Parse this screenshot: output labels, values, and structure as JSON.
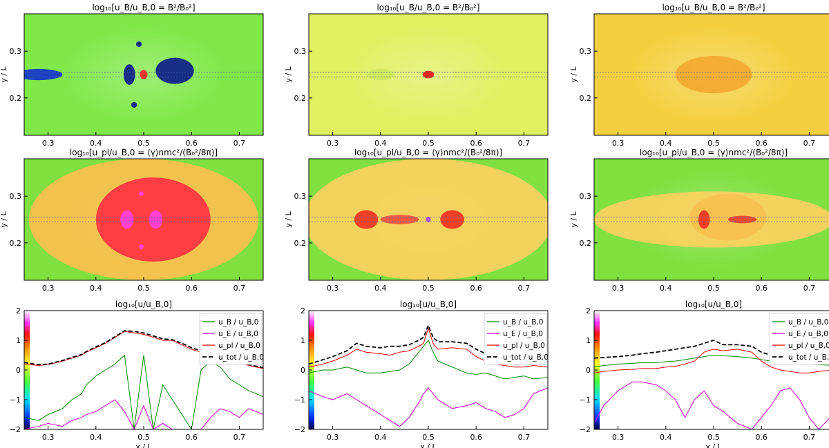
{
  "figure": {
    "title_uB": "log₁₀[u_B/u_B,0 = B²/B₀²]",
    "title_upl": "log₁₀[u_pl/u_B,0 = ⟨γ⟩nmc²/(B₀²/8π)]",
    "title_u": "log₁₀[u/u_B,0]",
    "ylabel_map": "y / L",
    "xlabel_line": "x / L",
    "x_ticks": [
      "0.3",
      "0.4",
      "0.5",
      "0.6",
      "0.7"
    ],
    "y_ticks_map": [
      "0.3",
      "0.2"
    ],
    "y_ticks_line": [
      "2",
      "1",
      "0",
      "−1",
      "−2"
    ],
    "legend": [
      "u_B / u_B,0",
      "u_E / u_B,0",
      "u_pl / u_B,0",
      "u_tot / u_B,0"
    ]
  },
  "chart_data": [
    {
      "type": "heatmap",
      "title": "log₁₀[u_B/u_B,0 = B²/B₀²]",
      "xlabel": "",
      "ylabel": "y / L",
      "xlim": [
        0.25,
        0.75
      ],
      "ylim": [
        0.12,
        0.38
      ],
      "features": [
        {
          "x": 0.28,
          "y": 0.25,
          "rx": 0.05,
          "ry": 0.012,
          "color": "#1030d0"
        },
        {
          "x": 0.47,
          "y": 0.25,
          "rx": 0.012,
          "ry": 0.022,
          "color": "#0a1a8a"
        },
        {
          "x": 0.5,
          "y": 0.25,
          "rx": 0.008,
          "ry": 0.01,
          "color": "#ff2020"
        },
        {
          "x": 0.565,
          "y": 0.258,
          "rx": 0.04,
          "ry": 0.028,
          "color": "#0a1a8a"
        },
        {
          "x": 0.49,
          "y": 0.315,
          "rx": 0.006,
          "ry": 0.006,
          "color": "#0a1a8a"
        },
        {
          "x": 0.48,
          "y": 0.185,
          "rx": 0.006,
          "ry": 0.006,
          "color": "#0a1a8a"
        }
      ]
    },
    {
      "type": "heatmap",
      "title": "log₁₀[u_B/u_B,0 = B²/B₀²]",
      "xlabel": "",
      "ylabel": "y / L",
      "xlim": [
        0.25,
        0.75
      ],
      "ylim": [
        0.12,
        0.38
      ],
      "features": [
        {
          "x": 0.5,
          "y": 0.25,
          "rx": 0.012,
          "ry": 0.008,
          "color": "#e81010"
        },
        {
          "x": 0.4,
          "y": 0.25,
          "rx": 0.03,
          "ry": 0.012,
          "color": "#d0e860"
        },
        {
          "x": 0.58,
          "y": 0.25,
          "rx": 0.03,
          "ry": 0.012,
          "color": "#e0f070"
        }
      ]
    },
    {
      "type": "heatmap",
      "title": "log₁₀[u_B/u_B,0 = B²/B₀²]",
      "xlabel": "",
      "ylabel": "y / L",
      "xlim": [
        0.25,
        0.75
      ],
      "ylim": [
        0.12,
        0.38
      ],
      "features": [
        {
          "x": 0.5,
          "y": 0.25,
          "rx": 0.08,
          "ry": 0.04,
          "color": "#f4a830"
        }
      ]
    },
    {
      "type": "heatmap",
      "title": "log₁₀[u_pl/u_B,0 = ⟨γ⟩nmc²/(B₀²/8π)]",
      "xlabel": "",
      "ylabel": "y / L",
      "xlim": [
        0.25,
        0.75
      ],
      "ylim": [
        0.12,
        0.38
      ],
      "features": [
        {
          "x": 0.5,
          "y": 0.25,
          "rx": 0.24,
          "ry": 0.13,
          "color": "#ffc050"
        },
        {
          "x": 0.52,
          "y": 0.25,
          "rx": 0.12,
          "ry": 0.09,
          "color": "#ff3040"
        },
        {
          "x": 0.465,
          "y": 0.25,
          "rx": 0.014,
          "ry": 0.02,
          "color": "#ff40e0"
        },
        {
          "x": 0.525,
          "y": 0.25,
          "rx": 0.014,
          "ry": 0.02,
          "color": "#ff40e0"
        },
        {
          "x": 0.495,
          "y": 0.305,
          "rx": 0.005,
          "ry": 0.005,
          "color": "#ff40e0"
        },
        {
          "x": 0.495,
          "y": 0.192,
          "rx": 0.005,
          "ry": 0.005,
          "color": "#ff40e0"
        }
      ]
    },
    {
      "type": "heatmap",
      "title": "log₁₀[u_pl/u_B,0 = ⟨γ⟩nmc²/(B₀²/8π)]",
      "xlabel": "",
      "ylabel": "y / L",
      "xlim": [
        0.25,
        0.75
      ],
      "ylim": [
        0.12,
        0.38
      ],
      "features": [
        {
          "x": 0.5,
          "y": 0.25,
          "rx": 0.26,
          "ry": 0.13,
          "color": "#ffd060"
        },
        {
          "x": 0.37,
          "y": 0.25,
          "rx": 0.025,
          "ry": 0.02,
          "color": "#f03020"
        },
        {
          "x": 0.44,
          "y": 0.25,
          "rx": 0.04,
          "ry": 0.01,
          "color": "#f05040"
        },
        {
          "x": 0.55,
          "y": 0.25,
          "rx": 0.025,
          "ry": 0.02,
          "color": "#f03020"
        },
        {
          "x": 0.5,
          "y": 0.25,
          "rx": 0.005,
          "ry": 0.006,
          "color": "#a040ff"
        }
      ]
    },
    {
      "type": "heatmap",
      "title": "log₁₀[u_pl/u_B,0 = ⟨γ⟩nmc²/(B₀²/8π)]",
      "xlabel": "",
      "ylabel": "y / L",
      "xlim": [
        0.25,
        0.75
      ],
      "ylim": [
        0.12,
        0.38
      ],
      "features": [
        {
          "x": 0.5,
          "y": 0.25,
          "rx": 0.25,
          "ry": 0.06,
          "color": "#ffd060"
        },
        {
          "x": 0.53,
          "y": 0.255,
          "rx": 0.08,
          "ry": 0.05,
          "color": "#f8c050"
        },
        {
          "x": 0.48,
          "y": 0.25,
          "rx": 0.012,
          "ry": 0.02,
          "color": "#f03020"
        },
        {
          "x": 0.56,
          "y": 0.25,
          "rx": 0.03,
          "ry": 0.008,
          "color": "#e84030"
        }
      ]
    },
    {
      "type": "line",
      "title": "log₁₀[u/u_B,0]",
      "xlabel": "x / L",
      "ylabel": "",
      "xlim": [
        0.25,
        0.75
      ],
      "ylim": [
        -2,
        2
      ],
      "legend_loc": "top-right",
      "x": [
        0.25,
        0.28,
        0.3,
        0.33,
        0.35,
        0.37,
        0.38,
        0.4,
        0.42,
        0.44,
        0.46,
        0.48,
        0.5,
        0.52,
        0.54,
        0.56,
        0.58,
        0.6,
        0.62,
        0.64,
        0.66,
        0.68,
        0.7,
        0.72,
        0.75
      ],
      "series": [
        {
          "name": "u_B / u_B,0",
          "color": "#008800",
          "values": [
            -1.6,
            -1.7,
            -1.5,
            -1.3,
            -1.0,
            -0.8,
            -0.5,
            -0.2,
            0.0,
            0.2,
            0.5,
            -2.0,
            0.5,
            -2.0,
            -0.5,
            -1.0,
            -1.5,
            -2.0,
            0.0,
            0.3,
            0.1,
            -0.3,
            -0.5,
            -0.7,
            -0.9
          ]
        },
        {
          "name": "u_E / u_B,0",
          "color": "#cc00cc",
          "values": [
            -2.0,
            -1.9,
            -1.8,
            -1.9,
            -1.7,
            -1.6,
            -1.5,
            -1.4,
            -1.2,
            -1.0,
            -1.4,
            -2.0,
            -1.2,
            -2.0,
            -1.8,
            -2.0,
            -2.0,
            -2.0,
            -2.0,
            -1.6,
            -1.3,
            -1.4,
            -1.6,
            -1.3,
            -1.5
          ]
        },
        {
          "name": "u_pl / u_B,0",
          "color": "#ee0000",
          "values": [
            0.2,
            0.15,
            0.18,
            0.3,
            0.4,
            0.5,
            0.6,
            0.75,
            0.9,
            1.1,
            1.3,
            1.25,
            1.2,
            1.1,
            1.0,
            1.0,
            0.85,
            0.7,
            0.6,
            0.5,
            0.4,
            0.3,
            0.25,
            0.15,
            0.05
          ]
        },
        {
          "name": "u_tot / u_B,0",
          "color": "#000000",
          "values": [
            0.25,
            0.18,
            0.2,
            0.32,
            0.42,
            0.52,
            0.62,
            0.78,
            0.92,
            1.12,
            1.32,
            1.3,
            1.25,
            1.15,
            1.05,
            1.02,
            0.9,
            0.75,
            0.65,
            0.55,
            0.45,
            0.35,
            0.28,
            0.18,
            0.08
          ]
        }
      ]
    },
    {
      "type": "line",
      "title": "log₁₀[u/u_B,0]",
      "xlabel": "x / L",
      "ylabel": "",
      "xlim": [
        0.25,
        0.75
      ],
      "ylim": [
        -2,
        2
      ],
      "legend_loc": "top-right",
      "x": [
        0.25,
        0.28,
        0.3,
        0.33,
        0.35,
        0.37,
        0.4,
        0.42,
        0.44,
        0.46,
        0.48,
        0.49,
        0.5,
        0.51,
        0.52,
        0.55,
        0.58,
        0.6,
        0.62,
        0.64,
        0.66,
        0.68,
        0.7,
        0.72,
        0.75
      ],
      "series": [
        {
          "name": "u_B / u_B,0",
          "color": "#008800",
          "values": [
            -0.1,
            0.0,
            0.0,
            0.1,
            0.0,
            -0.1,
            -0.1,
            -0.05,
            0.0,
            0.2,
            0.6,
            0.8,
            1.0,
            0.6,
            0.3,
            0.1,
            -0.1,
            -0.15,
            -0.1,
            -0.2,
            -0.3,
            -0.25,
            -0.2,
            -0.3,
            -0.25
          ]
        },
        {
          "name": "u_E / u_B,0",
          "color": "#cc00cc",
          "values": [
            -0.7,
            -0.9,
            -1.0,
            -0.8,
            -1.0,
            -1.2,
            -1.5,
            -1.7,
            -1.9,
            -1.6,
            -1.1,
            -0.8,
            -0.6,
            -0.8,
            -1.0,
            -1.3,
            -1.2,
            -1.1,
            -1.3,
            -1.4,
            -1.6,
            -1.5,
            -1.3,
            -0.8,
            -0.6
          ]
        },
        {
          "name": "u_pl / u_B,0",
          "color": "#ee0000",
          "values": [
            0.1,
            0.2,
            0.3,
            0.5,
            0.7,
            0.6,
            0.55,
            0.5,
            0.6,
            0.65,
            0.8,
            0.9,
            1.4,
            0.9,
            0.7,
            0.75,
            0.7,
            0.45,
            0.3,
            0.2,
            0.15,
            0.1,
            0.1,
            0.15,
            0.1
          ]
        },
        {
          "name": "u_tot / u_B,0",
          "color": "#000000",
          "values": [
            0.2,
            0.35,
            0.45,
            0.65,
            0.9,
            0.8,
            0.75,
            0.8,
            0.8,
            0.85,
            1.0,
            1.1,
            1.5,
            1.1,
            0.95,
            0.95,
            0.9,
            0.7,
            0.55,
            0.45,
            0.4,
            0.38,
            0.35,
            0.3,
            0.28
          ]
        }
      ]
    },
    {
      "type": "line",
      "title": "log₁₀[u/u_B,0]",
      "xlabel": "x / L",
      "ylabel": "",
      "xlim": [
        0.25,
        0.75
      ],
      "ylim": [
        -2,
        2
      ],
      "legend_loc": "top-right",
      "x": [
        0.25,
        0.27,
        0.3,
        0.33,
        0.35,
        0.38,
        0.4,
        0.42,
        0.44,
        0.46,
        0.48,
        0.5,
        0.52,
        0.55,
        0.58,
        0.6,
        0.62,
        0.64,
        0.66,
        0.68,
        0.7,
        0.72,
        0.75
      ],
      "series": [
        {
          "name": "u_B / u_B,0",
          "color": "#008800",
          "values": [
            0.1,
            0.15,
            0.2,
            0.22,
            0.25,
            0.25,
            0.28,
            0.3,
            0.35,
            0.4,
            0.45,
            0.5,
            0.48,
            0.45,
            0.4,
            0.35,
            0.3,
            0.25,
            0.22,
            0.2,
            0.2,
            0.18,
            0.15
          ]
        },
        {
          "name": "u_E / u_B,0",
          "color": "#cc00cc",
          "values": [
            -1.8,
            -1.2,
            -0.7,
            -0.4,
            -0.4,
            -0.5,
            -0.7,
            -1.0,
            -1.6,
            -1.0,
            -0.7,
            -1.2,
            -1.4,
            -1.8,
            -2.0,
            -1.6,
            -1.2,
            -0.7,
            -0.6,
            -1.0,
            -1.6,
            -2.0,
            -1.5
          ]
        },
        {
          "name": "u_pl / u_B,0",
          "color": "#ee0000",
          "values": [
            -0.1,
            -0.05,
            0.0,
            0.02,
            0.05,
            0.05,
            0.1,
            0.12,
            0.2,
            0.3,
            0.6,
            0.7,
            0.65,
            0.7,
            0.6,
            0.3,
            0.1,
            0.0,
            -0.05,
            -0.1,
            -0.1,
            -0.05,
            0.0
          ]
        },
        {
          "name": "u_tot / u_B,0",
          "color": "#000000",
          "values": [
            0.4,
            0.42,
            0.45,
            0.5,
            0.55,
            0.6,
            0.65,
            0.7,
            0.75,
            0.8,
            0.9,
            1.0,
            0.85,
            0.85,
            0.8,
            0.6,
            0.5,
            0.45,
            0.42,
            0.4,
            0.4,
            0.38,
            0.36
          ]
        }
      ]
    }
  ]
}
